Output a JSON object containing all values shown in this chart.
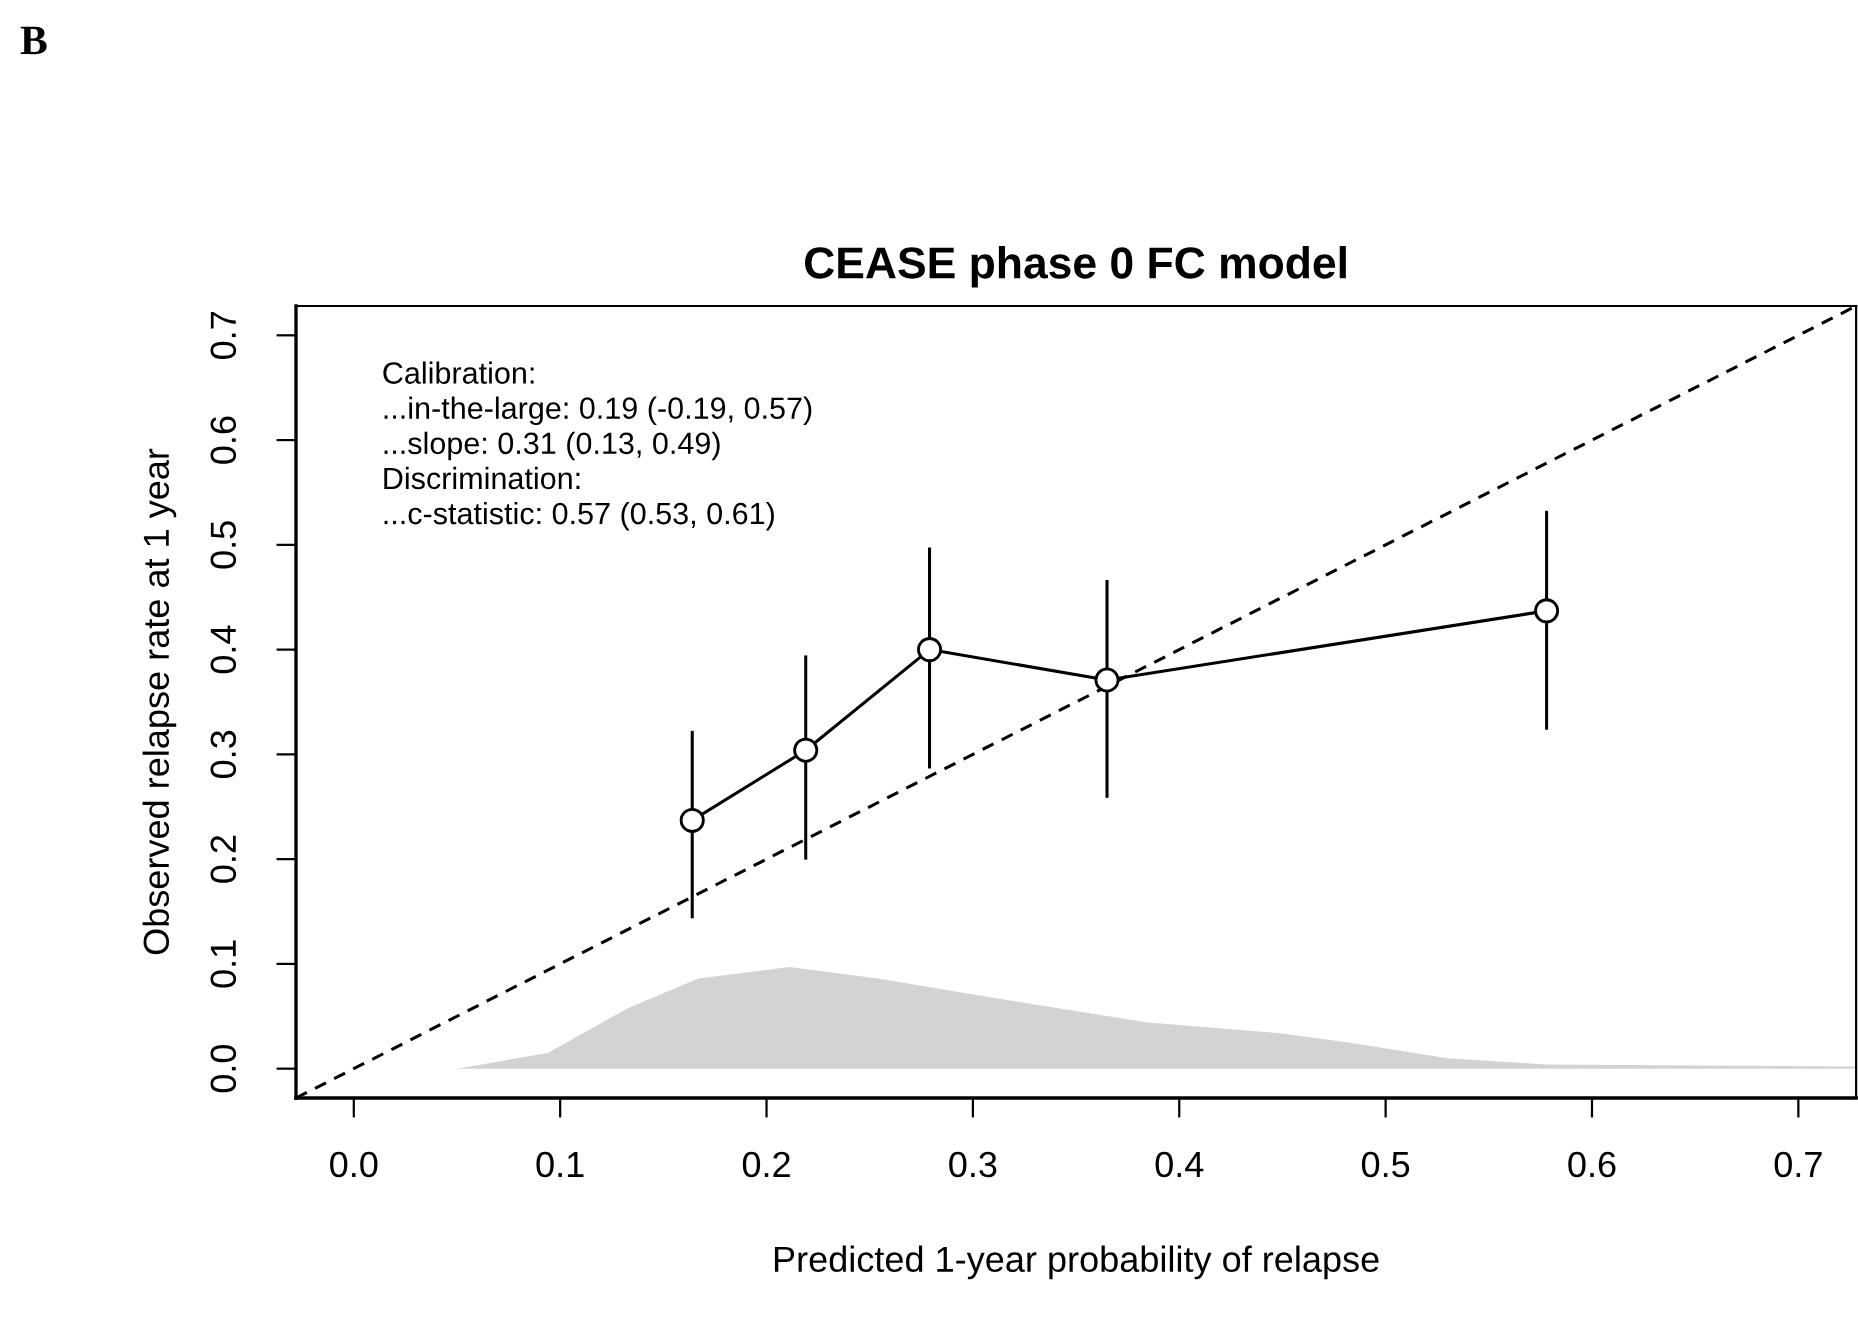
{
  "chart_data": {
    "type": "line",
    "title": "CEASE phase 0 FC model",
    "xlabel": "Predicted 1-year probability of relapse",
    "ylabel": "Observed relapse rate at 1 year",
    "annotations": [
      "B",
      "Calibration:\n...in-the-large: 0.19 (-0.19, 0.57)\n...slope: 0.31 (0.13, 0.49)\nDiscrimination:\n...c-statistic: 0.57 (0.53, 0.61)"
    ],
    "series": [
      {
        "type": "area",
        "color": "#d3d3d3",
        "x": [
          0.0,
          0.05,
          0.094,
          0.133,
          0.167,
          0.211,
          0.254,
          0.312,
          0.385,
          0.448,
          0.482,
          0.53,
          0.578,
          0.728
        ],
        "values": [
          0.0,
          0.0,
          0.015,
          0.058,
          0.086,
          0.097,
          0.086,
          0.067,
          0.044,
          0.034,
          0.025,
          0.01,
          0.004,
          0.002
        ]
      },
      {
        "type": "line",
        "color": "#000000",
        "line_style": "dashed",
        "marker": "none",
        "x": [
          -0.028,
          0.728
        ],
        "values": [
          -0.028,
          0.728
        ]
      },
      {
        "color": "#000000",
        "line_style": "solid",
        "marker": "circle",
        "x": [
          0.164,
          0.219,
          0.279,
          0.365,
          0.578
        ],
        "values": [
          0.237,
          0.304,
          0.4,
          0.371,
          0.437
        ],
        "errors": [
          [
            0.145,
            0.321
          ],
          [
            0.201,
            0.393
          ],
          [
            0.288,
            0.496
          ],
          [
            0.26,
            0.465
          ],
          [
            0.325,
            0.531
          ]
        ]
      }
    ],
    "xlim": [
      -0.028,
      0.728
    ],
    "ylim": [
      -0.028,
      0.728
    ],
    "xticks": [
      {
        "value": 0,
        "label": "0.0"
      },
      0.1,
      0.2,
      0.3,
      0.4,
      0.5,
      0.6,
      0.7
    ],
    "yticks": [
      {
        "value": 0,
        "label": "0.0"
      },
      0.1,
      0.2,
      0.3,
      0.4,
      0.5,
      0.6,
      0.7
    ],
    "grid": false
  }
}
